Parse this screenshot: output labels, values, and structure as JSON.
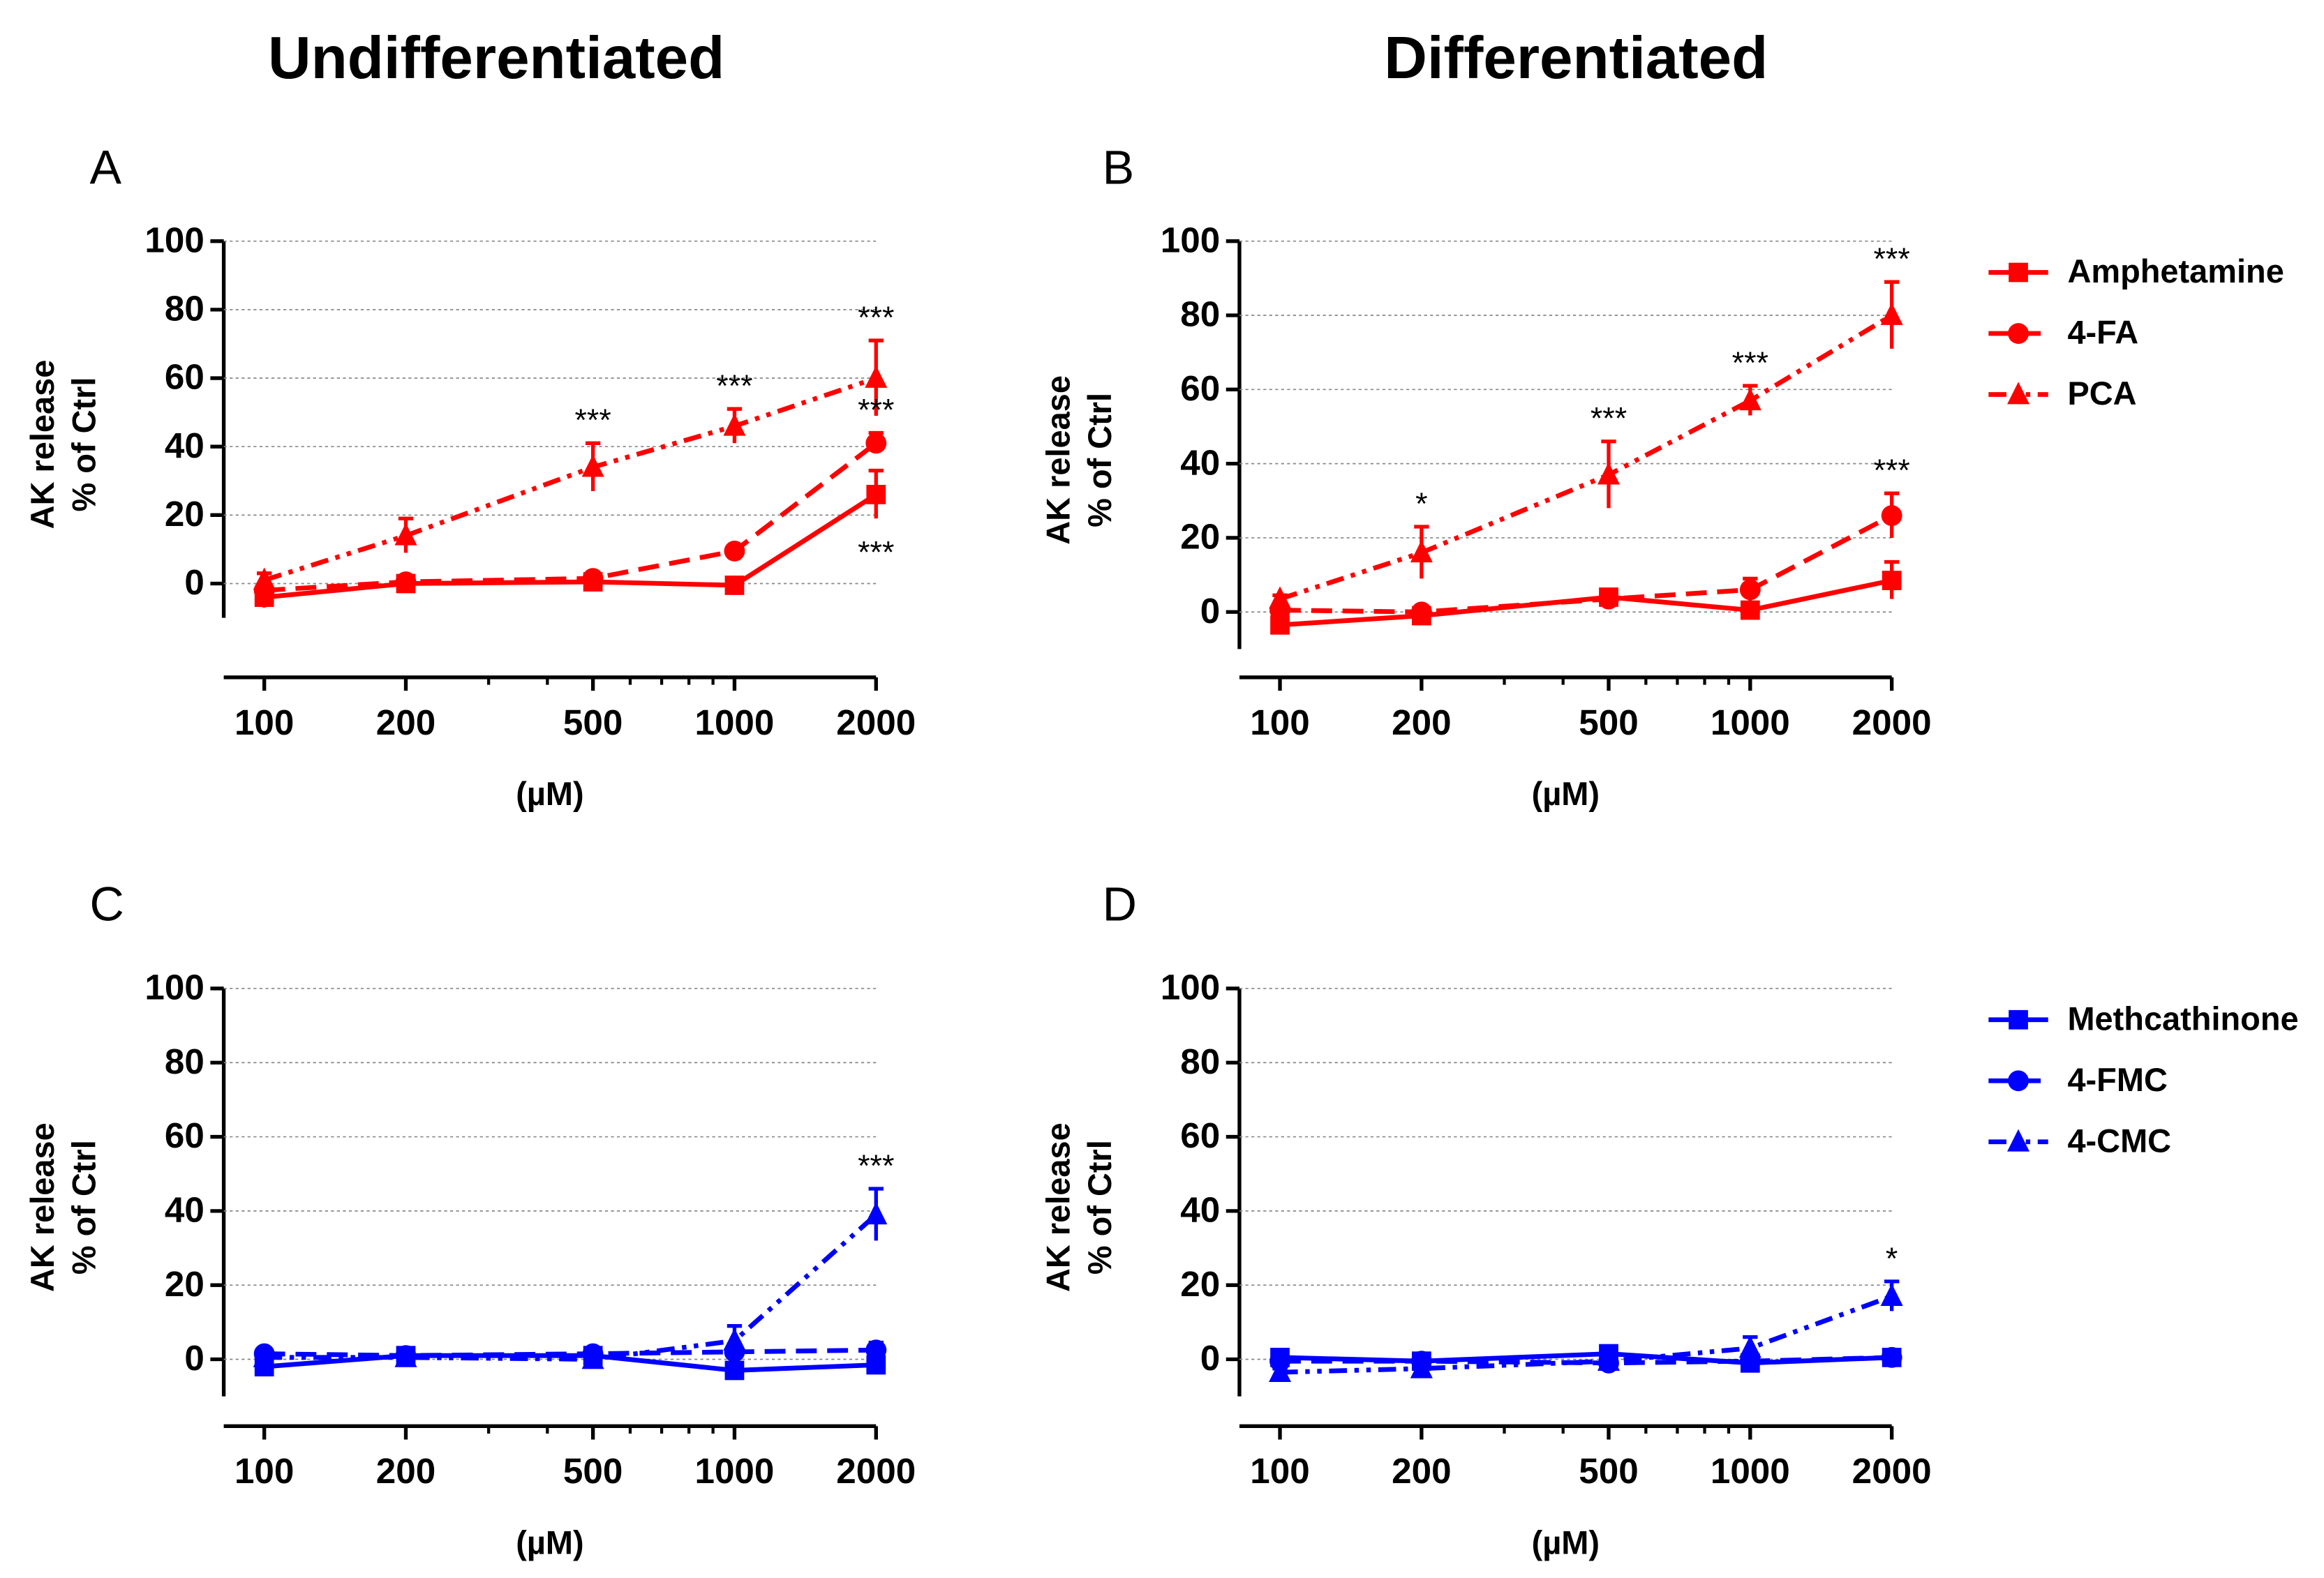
{
  "column_titles": [
    "Undifferentiated",
    "Differentiated"
  ],
  "chart_data": [
    {
      "type": "line",
      "panel": "A",
      "ylabel": [
        "AK release",
        "% of Ctrl"
      ],
      "xlabel": "(µM)",
      "x": [
        100,
        200,
        500,
        1000,
        2000
      ],
      "xscale": "log",
      "xlim": [
        82,
        2000
      ],
      "xticks": [
        100,
        200,
        500,
        1000,
        2000
      ],
      "xminor_ticks": [
        300,
        400,
        600,
        700,
        800,
        900
      ],
      "ylim": [
        -10,
        100
      ],
      "yticks": [
        0,
        20,
        40,
        60,
        80,
        100
      ],
      "grid": "y",
      "series": [
        {
          "color": "#ff0000",
          "marker": "square",
          "dash": "solid",
          "values": [
            -4,
            0,
            0.5,
            -0.5,
            26
          ],
          "errors": [
            3,
            1,
            2,
            1,
            7
          ]
        },
        {
          "color": "#ff0000",
          "marker": "circle",
          "dash": "dashed",
          "values": [
            -2,
            0.5,
            1.5,
            9.5,
            41
          ],
          "errors": [
            2,
            1,
            1,
            1,
            3
          ]
        },
        {
          "color": "#ff0000",
          "marker": "triangle",
          "dash": "dash-dot-dot",
          "values": [
            1,
            14,
            34,
            46,
            60
          ],
          "errors": [
            2,
            5,
            7,
            5,
            11
          ]
        }
      ],
      "annotations": [
        {
          "series": 2,
          "index": 2,
          "text": "***",
          "position": "above"
        },
        {
          "series": 2,
          "index": 3,
          "text": "***",
          "position": "above"
        },
        {
          "series": 2,
          "index": 4,
          "text": "***",
          "position": "above"
        },
        {
          "series": 1,
          "index": 4,
          "text": "***",
          "position": "above"
        },
        {
          "series": 0,
          "index": 4,
          "text": "***",
          "position": "below"
        }
      ]
    },
    {
      "type": "line",
      "panel": "B",
      "ylabel": [
        "AK release",
        "% of Ctrl"
      ],
      "xlabel": "(µM)",
      "x": [
        100,
        200,
        500,
        1000,
        2000
      ],
      "xscale": "log",
      "xlim": [
        82,
        2000
      ],
      "xticks": [
        100,
        200,
        500,
        1000,
        2000
      ],
      "xminor_ticks": [
        300,
        400,
        600,
        700,
        800,
        900
      ],
      "ylim": [
        -10,
        100
      ],
      "yticks": [
        0,
        20,
        40,
        60,
        80,
        100
      ],
      "grid": "y",
      "legend": "right",
      "series": [
        {
          "name": "Amphetamine",
          "color": "#ff0000",
          "marker": "square",
          "dash": "solid",
          "values": [
            -3.5,
            -1,
            4,
            0.5,
            8.5
          ],
          "errors": [
            1,
            1,
            2,
            1,
            5
          ]
        },
        {
          "name": "4-FA",
          "color": "#ff0000",
          "marker": "circle",
          "dash": "dashed",
          "values": [
            0.5,
            0,
            3.5,
            6,
            26
          ],
          "errors": [
            1,
            1,
            2,
            3,
            6
          ]
        },
        {
          "name": "PCA",
          "color": "#ff0000",
          "marker": "triangle",
          "dash": "dash-dot-dot",
          "values": [
            3.5,
            16,
            37,
            57,
            80
          ],
          "errors": [
            1,
            7,
            9,
            4,
            9
          ]
        }
      ],
      "annotations": [
        {
          "series": 2,
          "index": 1,
          "text": "*",
          "position": "above"
        },
        {
          "series": 2,
          "index": 2,
          "text": "***",
          "position": "above"
        },
        {
          "series": 2,
          "index": 3,
          "text": "***",
          "position": "above"
        },
        {
          "series": 2,
          "index": 4,
          "text": "***",
          "position": "above"
        },
        {
          "series": 1,
          "index": 4,
          "text": "***",
          "position": "above"
        }
      ]
    },
    {
      "type": "line",
      "panel": "C",
      "ylabel": [
        "AK release",
        "% of Ctrl"
      ],
      "xlabel": "(µM)",
      "x": [
        100,
        200,
        500,
        1000,
        2000
      ],
      "xscale": "log",
      "xlim": [
        82,
        2000
      ],
      "xticks": [
        100,
        200,
        500,
        1000,
        2000
      ],
      "xminor_ticks": [
        300,
        400,
        600,
        700,
        800,
        900
      ],
      "ylim": [
        -10,
        100
      ],
      "yticks": [
        0,
        20,
        40,
        60,
        80,
        100
      ],
      "grid": "y",
      "series": [
        {
          "color": "#0000ff",
          "marker": "square",
          "dash": "solid",
          "values": [
            -2,
            1,
            1,
            -3,
            -1.5
          ],
          "errors": [
            1,
            1,
            1,
            1,
            1
          ]
        },
        {
          "color": "#0000ff",
          "marker": "circle",
          "dash": "dashed",
          "values": [
            1.5,
            1,
            1.5,
            2,
            2.5
          ],
          "errors": [
            1,
            2,
            1,
            2,
            2
          ]
        },
        {
          "color": "#0000ff",
          "marker": "triangle",
          "dash": "dash-dot-dot",
          "values": [
            0.5,
            0.5,
            0,
            5,
            39
          ],
          "errors": [
            2,
            1,
            2,
            4,
            7
          ]
        }
      ],
      "annotations": [
        {
          "series": 2,
          "index": 4,
          "text": "***",
          "position": "above"
        }
      ]
    },
    {
      "type": "line",
      "panel": "D",
      "ylabel": [
        "AK release",
        "% of Ctrl"
      ],
      "xlabel": "(µM)",
      "x": [
        100,
        200,
        500,
        1000,
        2000
      ],
      "xscale": "log",
      "xlim": [
        82,
        2000
      ],
      "xticks": [
        100,
        200,
        500,
        1000,
        2000
      ],
      "xminor_ticks": [
        300,
        400,
        600,
        700,
        800,
        900
      ],
      "ylim": [
        -10,
        100
      ],
      "yticks": [
        0,
        20,
        40,
        60,
        80,
        100
      ],
      "grid": "y",
      "legend": "right",
      "series": [
        {
          "name": "Methcathinone",
          "color": "#0000ff",
          "marker": "square",
          "dash": "solid",
          "values": [
            0.5,
            -0.5,
            1.5,
            -1,
            0.5
          ],
          "errors": [
            1,
            1,
            1,
            1,
            1
          ]
        },
        {
          "name": "4-FMC",
          "color": "#0000ff",
          "marker": "circle",
          "dash": "dashed",
          "values": [
            -0.5,
            -0.5,
            -1,
            -0.5,
            0.5
          ],
          "errors": [
            1,
            1,
            1,
            1,
            1
          ]
        },
        {
          "name": "4-CMC",
          "color": "#0000ff",
          "marker": "triangle",
          "dash": "dash-dot-dot",
          "values": [
            -3.5,
            -2.5,
            -0.5,
            3,
            17
          ],
          "errors": [
            1,
            1,
            1,
            3,
            4
          ]
        }
      ],
      "annotations": [
        {
          "series": 2,
          "index": 4,
          "text": "*",
          "position": "above"
        }
      ]
    }
  ]
}
